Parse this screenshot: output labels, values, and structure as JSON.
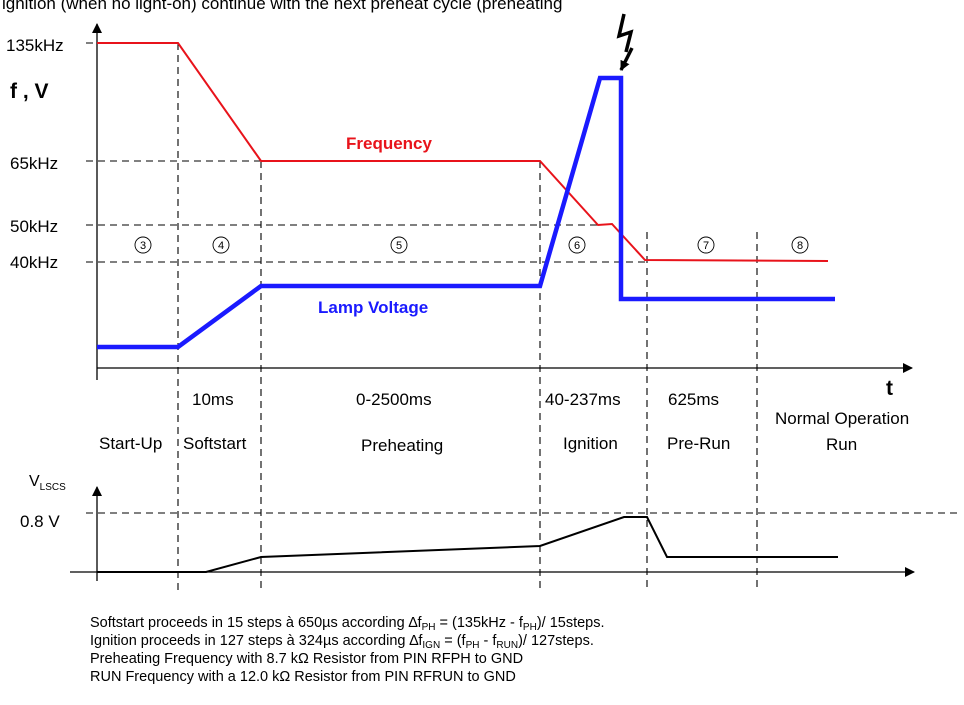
{
  "top_caption": "ignition (when no light-on) continue with the next preheat cycle (preheating",
  "upper_graph": {
    "y_label": "f , V",
    "t_label": "t",
    "freq_ticks": [
      "135kHz",
      "65kHz",
      "50kHz",
      "40kHz"
    ],
    "frequency_label": "Frequency",
    "voltage_label": "Lamp Voltage",
    "phase_numbers": [
      "3",
      "4",
      "5",
      "6",
      "7",
      "8"
    ],
    "colors": {
      "frequency": "#e8131b",
      "lamp_voltage": "#1a1aff"
    }
  },
  "phases": [
    {
      "duration": "",
      "name": "Start-Up"
    },
    {
      "duration": "10ms",
      "name": "Softstart"
    },
    {
      "duration": "0-2500ms",
      "name": "Preheating"
    },
    {
      "duration": "40-237ms",
      "name": "Ignition"
    },
    {
      "duration": "625ms",
      "name": "Pre-Run"
    },
    {
      "duration": "",
      "name": "Normal Operation",
      "name2": "Run"
    }
  ],
  "lower_graph": {
    "y_label_main": "V",
    "y_label_sub": "LSCS",
    "level": "0.8 V"
  },
  "notes": {
    "line1": {
      "a": "Softstart proceeds in 15 steps à 650µs according ∆f",
      "a_sub": "PH",
      "b": " = (135kHz - f",
      "b_sub": "PH",
      "c": ")/ 15steps."
    },
    "line2": {
      "a": "Ignition proceeds in 127 steps à 324µs according ∆f",
      "a_sub": "IGN",
      "b": " = (f",
      "b_sub": "PH",
      "c": " - f",
      "c_sub": "RUN",
      "d": ")/ 127steps."
    },
    "line3": "Preheating Frequency with 8.7 kΩ Resistor from PIN RFPH to GND",
    "line4": "RUN Frequency with a 12.0 kΩ Resistor from PIN RFRUN to GND"
  }
}
